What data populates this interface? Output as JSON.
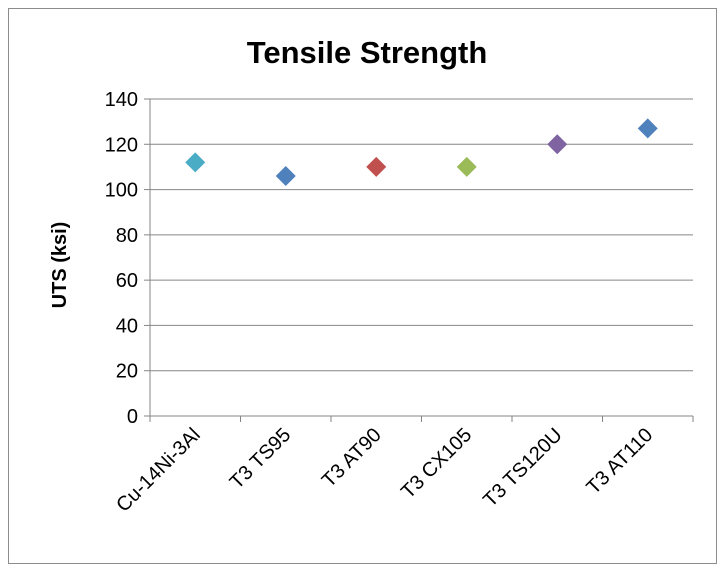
{
  "chart_data": {
    "type": "scatter",
    "title": "Tensile Strength",
    "xlabel": "",
    "ylabel": "UTS (ksi)",
    "ylim": [
      0,
      140
    ],
    "yticks": [
      0,
      20,
      40,
      60,
      80,
      100,
      120,
      140
    ],
    "grid": true,
    "legend": "none",
    "marker": "diamond",
    "categories": [
      "Cu-14Ni-3Al",
      "T3 TS95",
      "T3 AT90",
      "T3 CX105",
      "T3 TS120U",
      "T3 AT110"
    ],
    "values": [
      112,
      106,
      110,
      110,
      120,
      127
    ],
    "colors": [
      "#4bacc6",
      "#4f81bd",
      "#c0504d",
      "#9bbb59",
      "#8064a2",
      "#4f81bd"
    ]
  }
}
